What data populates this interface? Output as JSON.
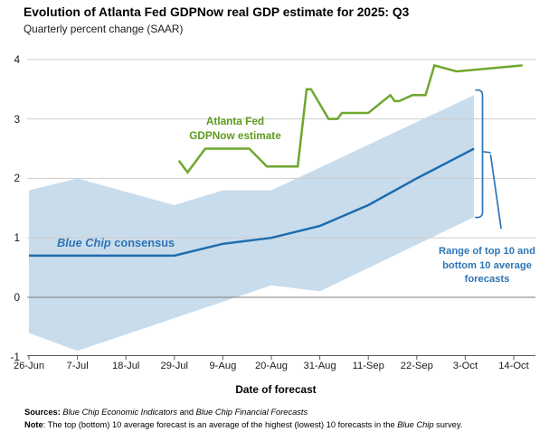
{
  "header": {
    "title": "Evolution of Atlanta Fed GDPNow real GDP estimate for 2025: Q3",
    "subtitle": "Quarterly percent change (SAAR)"
  },
  "chart_data": {
    "type": "line",
    "title": "Evolution of Atlanta Fed GDPNow real GDP estimate for 2025: Q3",
    "subtitle": "Quarterly percent change (SAAR)",
    "x_axis": {
      "label": "Date of forecast",
      "tick_labels": [
        "26-Jun",
        "7-Jul",
        "18-Jul",
        "29-Jul",
        "9-Aug",
        "20-Aug",
        "31-Aug",
        "11-Sep",
        "22-Sep",
        "3-Oct",
        "14-Oct"
      ]
    },
    "y_axis": {
      "ticks": [
        4,
        3,
        2,
        1,
        0,
        -1
      ],
      "range": [
        -1,
        4
      ],
      "grid": true
    },
    "series": [
      {
        "name": "Atlanta Fed GDPNow estimate",
        "color": "#6FA72E",
        "points": [
          [
            "30-Jul",
            2.3
          ],
          [
            "1-Aug",
            2.1
          ],
          [
            "5-Aug",
            2.5
          ],
          [
            "15-Aug",
            2.5
          ],
          [
            "19-Aug",
            2.2
          ],
          [
            "26-Aug",
            2.2
          ],
          [
            "28-Aug",
            3.5
          ],
          [
            "29-Aug",
            3.5
          ],
          [
            "2-Sep",
            3.0
          ],
          [
            "4-Sep",
            3.0
          ],
          [
            "5-Sep",
            3.1
          ],
          [
            "11-Sep",
            3.1
          ],
          [
            "16-Sep",
            3.4
          ],
          [
            "17-Sep",
            3.3
          ],
          [
            "18-Sep",
            3.3
          ],
          [
            "21-Sep",
            3.4
          ],
          [
            "24-Sep",
            3.4
          ],
          [
            "26-Sep",
            3.9
          ],
          [
            "1-Oct",
            3.8
          ],
          [
            "16-Oct",
            3.9
          ]
        ]
      },
      {
        "name": "Blue Chip consensus",
        "color": "#1F6DAE",
        "points": [
          [
            "26-Jun",
            0.7
          ],
          [
            "29-Jul",
            0.7
          ],
          [
            "9-Aug",
            0.9
          ],
          [
            "20-Aug",
            1.0
          ],
          [
            "31-Aug",
            1.2
          ],
          [
            "11-Sep",
            1.55
          ],
          [
            "22-Sep",
            2.0
          ],
          [
            "5-Oct",
            2.5
          ]
        ]
      }
    ],
    "band": {
      "name": "Range of top 10 and bottom 10 average forecasts",
      "color": "#C9DCEC",
      "top": [
        [
          "26-Jun",
          1.8
        ],
        [
          "7-Jul",
          2.0
        ],
        [
          "29-Jul",
          1.55
        ],
        [
          "9-Aug",
          1.8
        ],
        [
          "20-Aug",
          1.8
        ],
        [
          "5-Oct",
          3.4
        ]
      ],
      "bottom": [
        [
          "26-Jun",
          -0.6
        ],
        [
          "7-Jul",
          -0.9
        ],
        [
          "20-Aug",
          0.2
        ],
        [
          "31-Aug",
          0.1
        ],
        [
          "5-Oct",
          1.35
        ]
      ]
    },
    "bracket": {
      "top_value": 3.5,
      "bottom_value": 1.33,
      "mid_value": 2.45
    },
    "colors": {
      "grid": "#CDCDCD",
      "zero_line": "#7D7D7D",
      "axis": "#58595B",
      "accent_blue": "#2E75B6",
      "green_text": "#5F9A1F"
    }
  },
  "annotations": {
    "gdpnow_line1": "Atlanta Fed",
    "gdpnow_line2": "GDPNow estimate",
    "consensus_segments": [
      {
        "t": "Blue Chip",
        "i": true
      },
      {
        "t": " consensus"
      }
    ],
    "range_line1": "Range of top 10 and",
    "range_line2": "bottom 10 average",
    "range_line3": "forecasts"
  },
  "footer": {
    "sources_segments": [
      {
        "t": "Sources: ",
        "b": true
      },
      {
        "t": "Blue Chip Economic Indicators",
        "i": true
      },
      {
        "t": " and "
      },
      {
        "t": "Blue Chip Financial Forecasts",
        "i": true
      }
    ],
    "note_segments": [
      {
        "t": "Note",
        "b": true
      },
      {
        "t": ": The top (bottom) 10 average forecast is an average of the highest (lowest) 10 forecasts in the "
      },
      {
        "t": "Blue Chip",
        "i": true
      },
      {
        "t": " survey."
      }
    ]
  }
}
